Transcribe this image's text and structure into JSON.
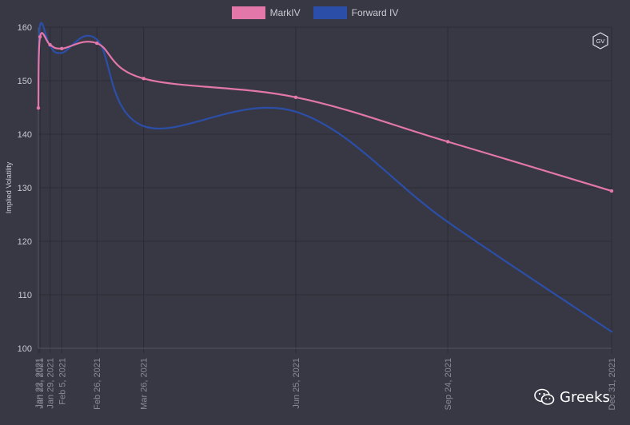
{
  "chart_data": {
    "type": "line",
    "ylabel": "Implied Volatility",
    "ylim": [
      100,
      160
    ],
    "yticks": [
      100,
      110,
      120,
      130,
      140,
      150,
      160
    ],
    "x_dates": [
      "2021-01-22",
      "2021-01-23",
      "2021-01-29",
      "2021-02-05",
      "2021-02-26",
      "2021-03-26",
      "2021-06-25",
      "2021-09-24",
      "2021-12-31"
    ],
    "x_labels": [
      "Jan 22, 2021",
      "Jan 23, 2021",
      "Jan 29, 2021",
      "Feb 5, 2021",
      "Feb 26, 2021",
      "Mar 26, 2021",
      "Jun 25, 2021",
      "Sep 24, 2021",
      "Dec 31, 2021"
    ],
    "series": [
      {
        "name": "MarkIV",
        "color": "#e377a9",
        "values": [
          144.9,
          158.2,
          156.7,
          156.0,
          157.0,
          150.4,
          146.9,
          138.6,
          129.4
        ],
        "points": true
      },
      {
        "name": "Forward IV",
        "color": "#2b4fa8",
        "values": [
          145.0,
          160.3,
          156.5,
          155.2,
          157.7,
          141.5,
          144.2,
          123.6,
          103.1
        ],
        "points": false
      }
    ],
    "grid": true,
    "legend": "top-center"
  },
  "badge": {
    "text": "GV"
  },
  "watermark": {
    "text": "Greeks"
  }
}
